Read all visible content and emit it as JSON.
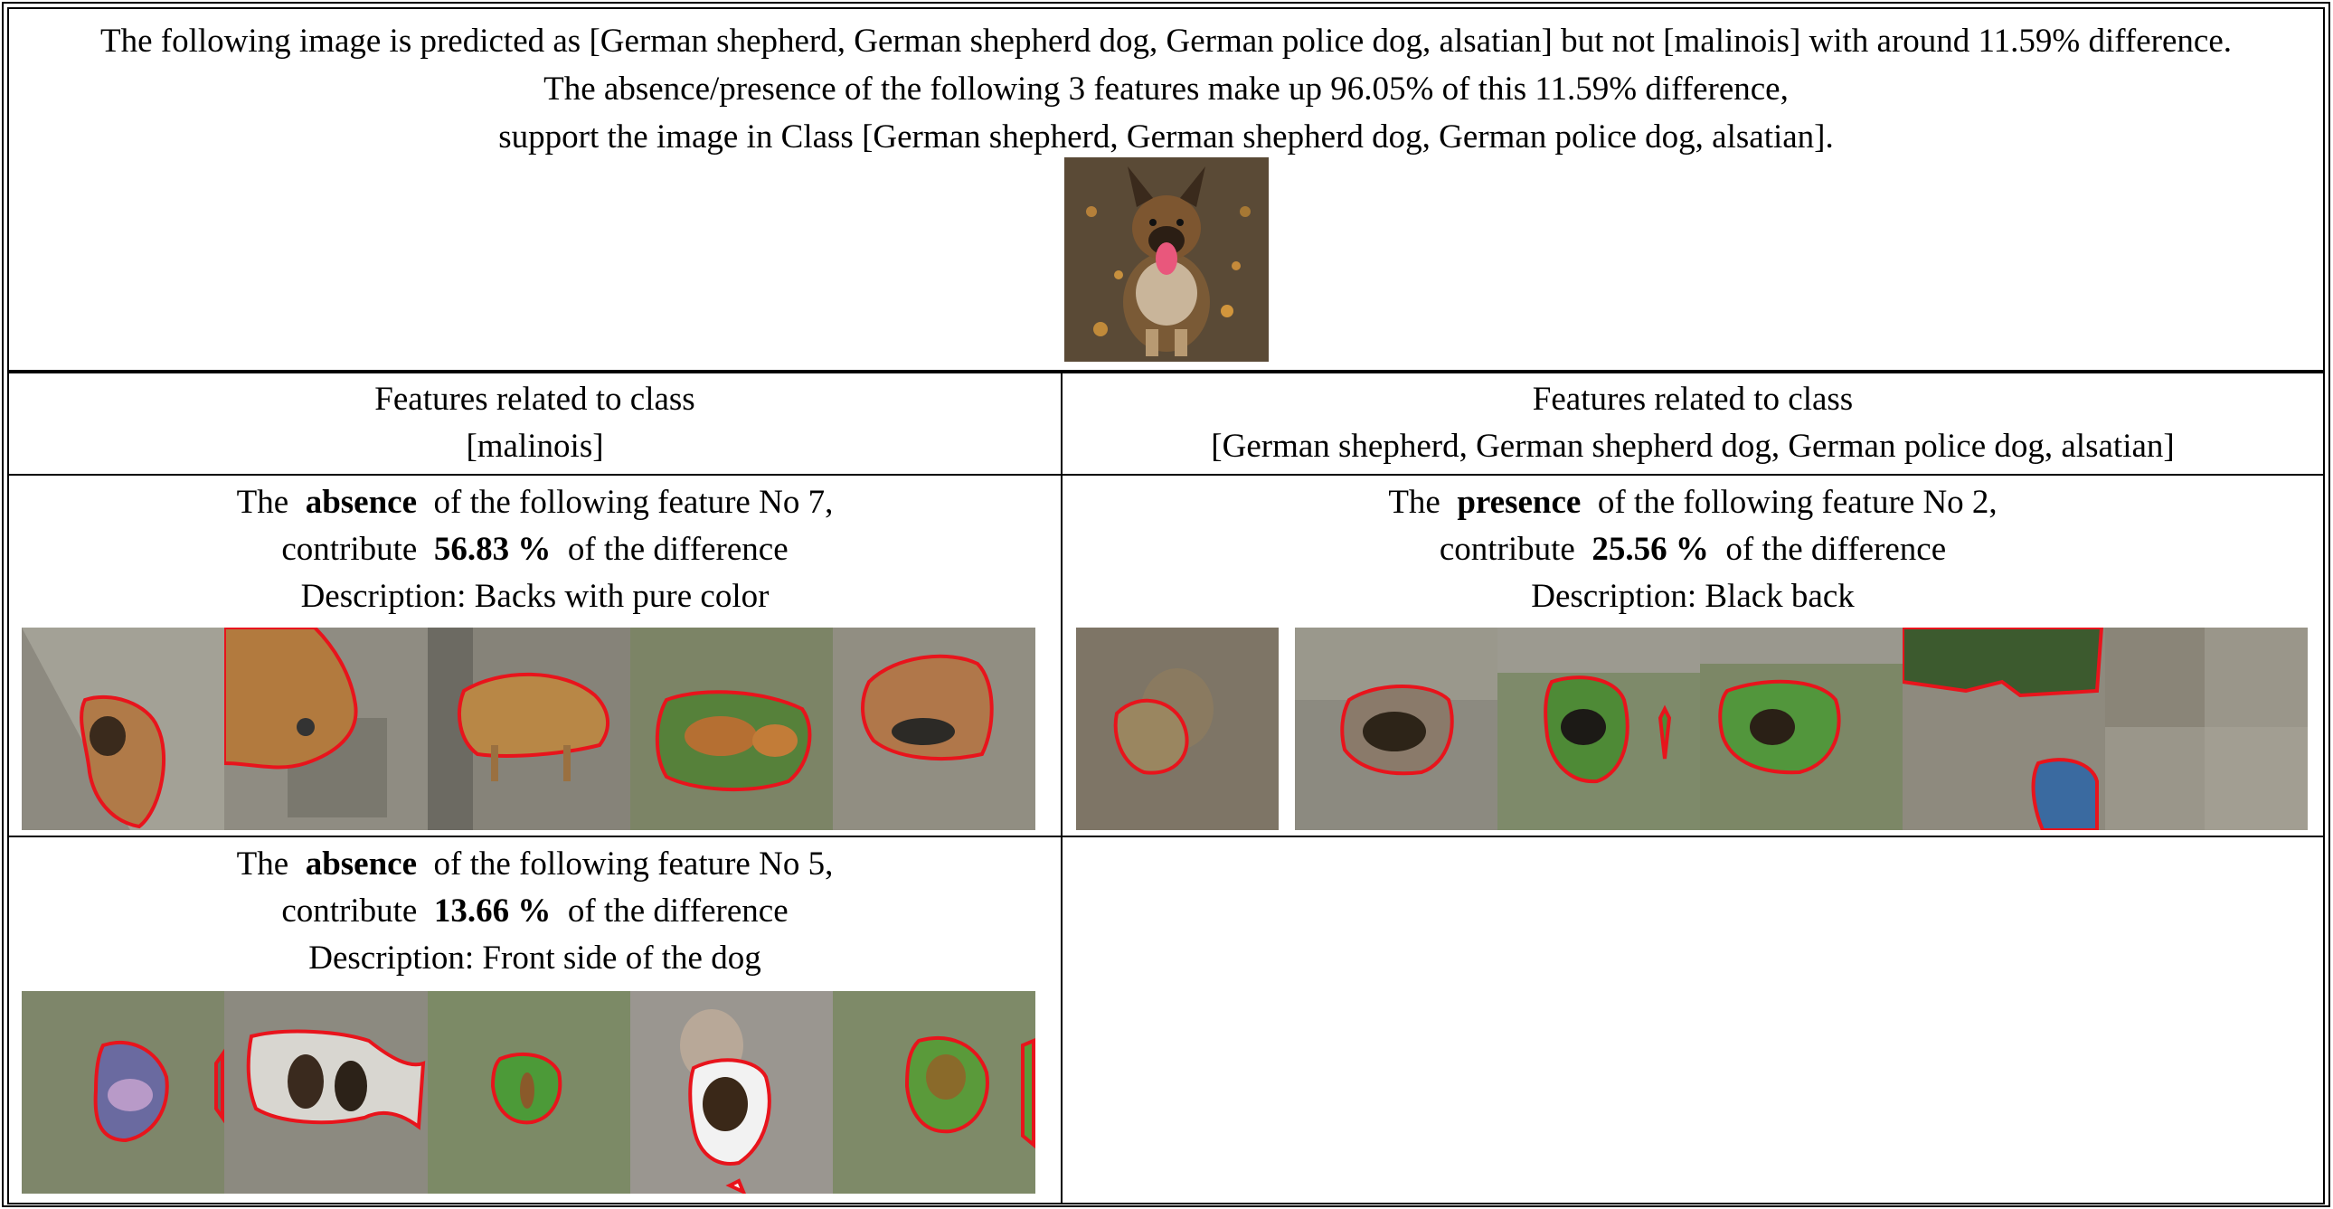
{
  "header": {
    "line1": "The following image is predicted as [German shepherd, German shepherd dog, German police dog, alsatian] but not [malinois] with around 11.59% difference.",
    "line2": "The absence/presence of the following 3 features make up 96.05% of this 11.59% difference,",
    "line3": "support the image in Class [German shepherd, German shepherd dog, German police dog, alsatian]."
  },
  "left_column": {
    "title_line1": "Features related to class",
    "title_line2": "[malinois]"
  },
  "right_column": {
    "title_line1": "Features related to class",
    "title_line2": "[German shepherd, German shepherd dog, German police dog, alsatian]"
  },
  "features": [
    {
      "prefix": "The",
      "kind": "absence",
      "suffix": "of the following feature No 7,",
      "contribute_prefix": "contribute",
      "percent": "56.83 %",
      "contribute_suffix": "of the difference",
      "description": "Description: Backs with pure color"
    },
    {
      "prefix": "The",
      "kind": "presence",
      "suffix": "of the following feature No 2,",
      "contribute_prefix": "contribute",
      "percent": "25.56 %",
      "contribute_suffix": "of the difference",
      "description": "Description: Black back"
    },
    {
      "prefix": "The",
      "kind": "absence",
      "suffix": "of the following feature No 5,",
      "contribute_prefix": "contribute",
      "percent": "13.66 %",
      "contribute_suffix": "of the difference",
      "description": "Description: Front side of the dog"
    }
  ],
  "colors": {
    "outline": "#e8141c",
    "border": "#000000",
    "muted_overlay": "#9c9a90"
  }
}
